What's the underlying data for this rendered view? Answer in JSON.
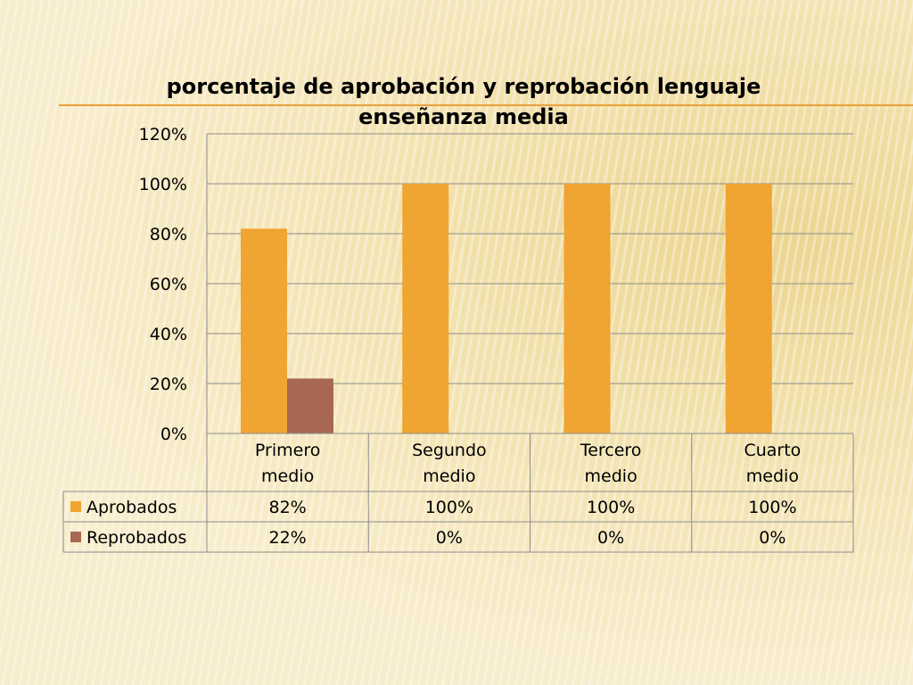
{
  "chart_data": {
    "type": "bar",
    "title_line1": "porcentaje de aprobación y reprobación lenguaje",
    "title_line2": "enseñanza media",
    "categories": [
      [
        "Primero",
        "medio"
      ],
      [
        "Segundo",
        "medio"
      ],
      [
        "Tercero",
        "medio"
      ],
      [
        "Cuarto",
        "medio"
      ]
    ],
    "series": [
      {
        "name": "Aprobados",
        "values": [
          0.82,
          1.0,
          1.0,
          1.0
        ],
        "labels": [
          "82%",
          "100%",
          "100%",
          "100%"
        ],
        "color": "#f0a431"
      },
      {
        "name": "Reprobados",
        "values": [
          0.22,
          0.0,
          0.0,
          0.0
        ],
        "labels": [
          "22%",
          "0%",
          "0%",
          "0%"
        ],
        "color": "#a86752"
      }
    ],
    "ylim": [
      0,
      1.2
    ],
    "yticks": [
      0,
      0.2,
      0.4,
      0.6,
      0.8,
      1.0,
      1.2
    ],
    "ytick_labels": [
      "0%",
      "20%",
      "40%",
      "60%",
      "80%",
      "100%",
      "120%"
    ],
    "grid": true,
    "legend": "data-table",
    "colors": {
      "grid": "#8c8c8c",
      "text": "#000000"
    }
  }
}
